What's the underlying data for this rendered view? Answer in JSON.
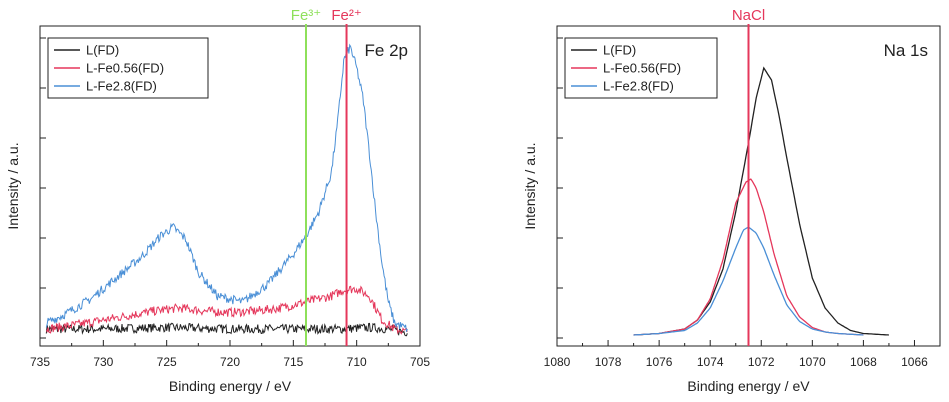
{
  "chart_data": [
    {
      "type": "line",
      "title": "Fe 2p",
      "xlabel": "Binding energy / eV",
      "ylabel": "Intensity / a.u.",
      "xlim": [
        735,
        705
      ],
      "x_reversed": true,
      "xticks": [
        735,
        730,
        725,
        720,
        715,
        710,
        705
      ],
      "grid": false,
      "legend_placement": "top-left",
      "reference_lines": [
        {
          "label": "Fe³⁺",
          "x": 714.0,
          "color": "#8ee05a"
        },
        {
          "label": "Fe²⁺",
          "x": 710.8,
          "color": "#e5375b"
        }
      ],
      "series": [
        {
          "name": "L(FD)",
          "color": "#222222",
          "x": [
            734.5,
            730,
            725,
            720,
            715,
            711,
            709,
            707.5,
            706
          ],
          "y": [
            0.03,
            0.03,
            0.035,
            0.03,
            0.03,
            0.03,
            0.035,
            0.03,
            0.02
          ]
        },
        {
          "name": "L-Fe0.56(FD)",
          "color": "#e5375b",
          "x": [
            734.5,
            732,
            730,
            728,
            726,
            724,
            722,
            720,
            718,
            716,
            714,
            712,
            711,
            710,
            709,
            708.5,
            708,
            707,
            706
          ],
          "y": [
            0.03,
            0.045,
            0.06,
            0.075,
            0.09,
            0.1,
            0.09,
            0.085,
            0.09,
            0.1,
            0.12,
            0.14,
            0.16,
            0.165,
            0.14,
            0.1,
            0.06,
            0.03,
            0.02
          ]
        },
        {
          "name": "L-Fe2.8(FD)",
          "color": "#4a8fd6",
          "x": [
            734.5,
            733,
            731,
            729,
            727,
            725.5,
            724.5,
            723.5,
            722.5,
            721,
            719,
            717,
            715,
            714,
            713,
            712,
            711.5,
            711,
            710.5,
            710,
            709.5,
            709,
            708.5,
            708,
            707.5,
            707,
            706
          ],
          "y": [
            0.05,
            0.08,
            0.13,
            0.2,
            0.27,
            0.34,
            0.37,
            0.33,
            0.22,
            0.14,
            0.12,
            0.18,
            0.28,
            0.34,
            0.42,
            0.55,
            0.72,
            0.93,
            0.97,
            0.9,
            0.8,
            0.62,
            0.42,
            0.25,
            0.12,
            0.05,
            0.03
          ]
        }
      ]
    },
    {
      "type": "line",
      "title": "Na 1s",
      "xlabel": "Binding energy / eV",
      "ylabel": "Intensity / a.u.",
      "xlim": [
        1080,
        1065
      ],
      "x_reversed": true,
      "xticks": [
        1080,
        1078,
        1076,
        1074,
        1072,
        1070,
        1068,
        1066
      ],
      "grid": false,
      "legend_placement": "top-left",
      "reference_lines": [
        {
          "label": "NaCl",
          "x": 1072.5,
          "color": "#e5375b"
        }
      ],
      "series": [
        {
          "name": "L(FD)",
          "color": "#222222",
          "x": [
            1077,
            1076,
            1075,
            1074.5,
            1074,
            1073.5,
            1073,
            1072.5,
            1072.2,
            1071.9,
            1071.6,
            1071.3,
            1071,
            1070.5,
            1070,
            1069.5,
            1069,
            1068.5,
            1068,
            1067
          ],
          "y": [
            0.01,
            0.015,
            0.03,
            0.06,
            0.12,
            0.23,
            0.42,
            0.65,
            0.8,
            0.9,
            0.86,
            0.74,
            0.6,
            0.38,
            0.2,
            0.1,
            0.05,
            0.025,
            0.015,
            0.01
          ]
        },
        {
          "name": "L-Fe0.56(FD)",
          "color": "#e5375b",
          "x": [
            1077,
            1076,
            1075,
            1074.5,
            1074,
            1073.5,
            1073,
            1072.6,
            1072.4,
            1072.2,
            1071.9,
            1071.5,
            1071,
            1070.5,
            1070,
            1069.5,
            1069,
            1068
          ],
          "y": [
            0.01,
            0.015,
            0.03,
            0.06,
            0.13,
            0.26,
            0.45,
            0.52,
            0.53,
            0.5,
            0.42,
            0.28,
            0.14,
            0.07,
            0.035,
            0.02,
            0.015,
            0.01
          ]
        },
        {
          "name": "L-Fe2.8(FD)",
          "color": "#4a8fd6",
          "x": [
            1077,
            1076,
            1075,
            1074.5,
            1074,
            1073.5,
            1073,
            1072.7,
            1072.5,
            1072.2,
            1071.9,
            1071.5,
            1071,
            1070.5,
            1070,
            1069.5,
            1069,
            1068
          ],
          "y": [
            0.01,
            0.015,
            0.025,
            0.05,
            0.1,
            0.19,
            0.3,
            0.36,
            0.37,
            0.35,
            0.3,
            0.21,
            0.11,
            0.055,
            0.03,
            0.02,
            0.015,
            0.01
          ]
        }
      ]
    }
  ]
}
